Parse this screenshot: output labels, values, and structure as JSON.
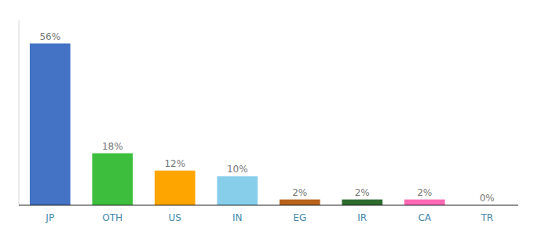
{
  "chart_data": {
    "type": "bar",
    "categories": [
      "JP",
      "OTH",
      "US",
      "IN",
      "EG",
      "IR",
      "CA",
      "TR"
    ],
    "values": [
      56,
      18,
      12,
      10,
      2,
      2,
      2,
      0
    ],
    "value_labels": [
      "56%",
      "18%",
      "12%",
      "10%",
      "2%",
      "2%",
      "2%",
      "0%"
    ],
    "colors": [
      "#4472C4",
      "#3DBF3D",
      "#FFA500",
      "#87CEEB",
      "#B8621A",
      "#2E6B2E",
      "#FF69B4",
      "#C8C8C8"
    ],
    "ylim": [
      0,
      64
    ],
    "data_labels": true,
    "tick_labels": "x",
    "grid": false
  }
}
